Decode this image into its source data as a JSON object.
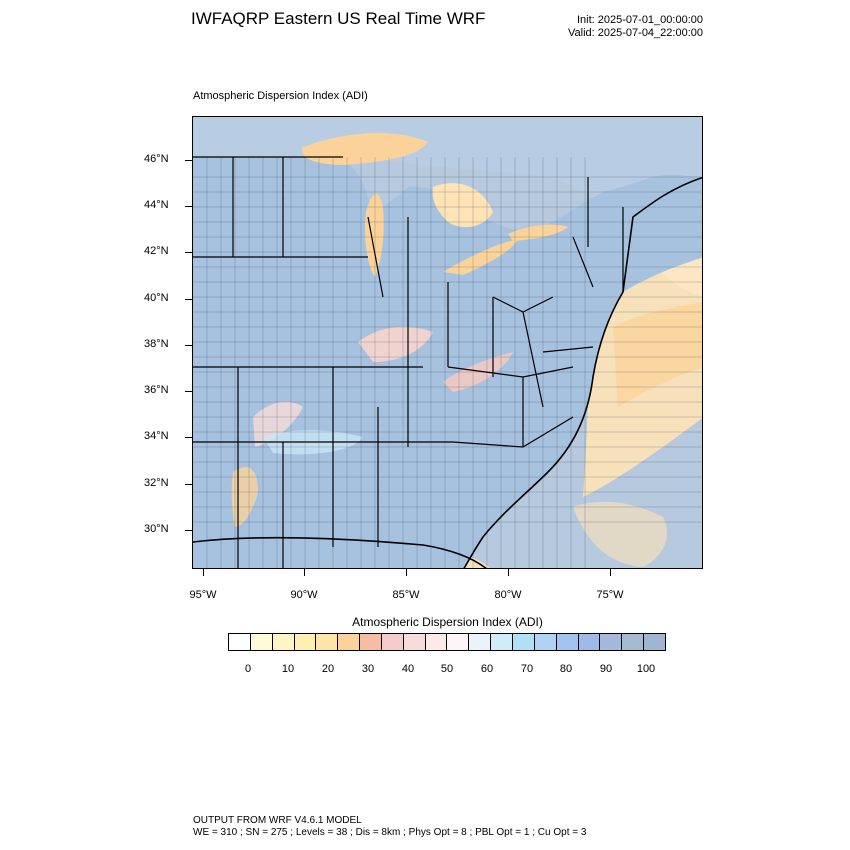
{
  "header": {
    "title": "IWFAQRP Eastern US Real Time WRF",
    "init": "Init: 2025-07-01_00:00:00",
    "valid": "Valid: 2025-07-04_22:00:00"
  },
  "map": {
    "subtitle": "Atmospheric Dispersion Index   (ADI)",
    "lat_ticks": [
      "46°N",
      "44°N",
      "42°N",
      "40°N",
      "38°N",
      "36°N",
      "34°N",
      "32°N",
      "30°N"
    ],
    "lon_ticks": [
      "95°W",
      "90°W",
      "85°W",
      "80°W",
      "75°W"
    ],
    "colors": {
      "land_high": "#a8c4e0",
      "water": "#b8cce4",
      "low_yellow": "#fff2c0",
      "orange": "#fbd7a8",
      "pink": "#f6c9c2",
      "light_blue": "#b8e6f8"
    }
  },
  "colorbar": {
    "title": "Atmospheric Dispersion Index  (ADI)",
    "labels": [
      "0",
      "10",
      "20",
      "30",
      "40",
      "50",
      "60",
      "70",
      "80",
      "90",
      "100"
    ],
    "colors": [
      "#ffffff",
      "#fffbd8",
      "#fff5c4",
      "#fef0b0",
      "#fde4a8",
      "#fbd39a",
      "#f7bca4",
      "#f5cccc",
      "#f8dcd9",
      "#fbeae8",
      "#fdf5f8",
      "#eaf2fb",
      "#d0ecf8",
      "#b0e0f6",
      "#aed3f4",
      "#a4c4f0",
      "#9fb9e8",
      "#a3b8da",
      "#a6bad4",
      "#a0b6d0"
    ]
  },
  "footer": {
    "line1": "OUTPUT FROM WRF V4.6.1 MODEL",
    "line2": "WE = 310 ; SN = 275 ; Levels = 38 ; Dis = 8km ; Phys Opt = 8 ; PBL Opt = 1 ; Cu Opt = 3"
  }
}
